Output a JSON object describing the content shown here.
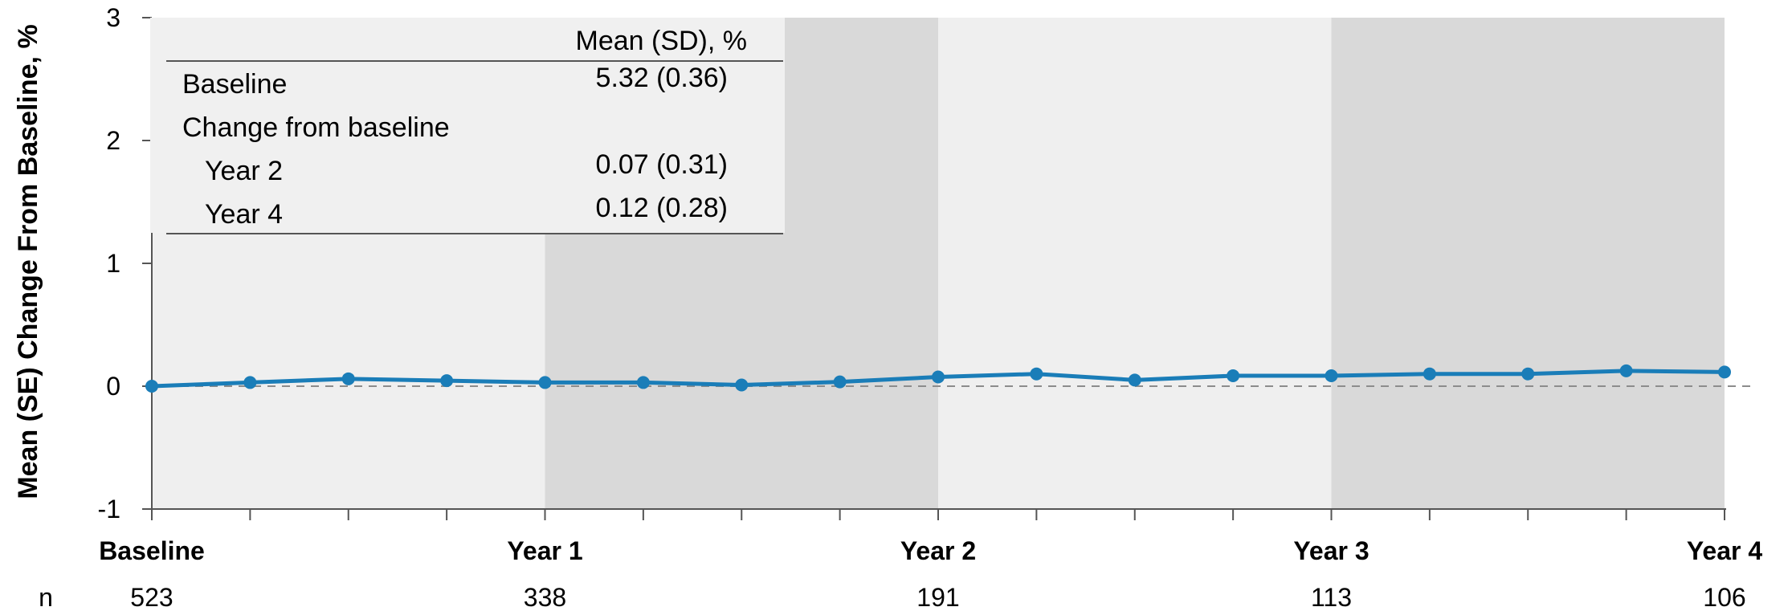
{
  "chart_data": {
    "type": "line",
    "ylabel": "Mean (SE) Change From Baseline, %",
    "ylim": [
      -1,
      3
    ],
    "yticks": [
      "3",
      "2",
      "1",
      "0",
      "-1"
    ],
    "x_major_labels": [
      "Baseline",
      "Year 1",
      "Year 2",
      "Year 3",
      "Year 4"
    ],
    "n_label": "n",
    "n_values": [
      "523",
      "338",
      "191",
      "113",
      "106"
    ],
    "series": [
      {
        "values": [
          0.0,
          0.03,
          0.06,
          0.045,
          0.03,
          0.03,
          0.01,
          0.035,
          0.075,
          0.1,
          0.05,
          0.085,
          0.085,
          0.1,
          0.1,
          0.125,
          0.115
        ]
      }
    ],
    "shaded_bands": [
      "light",
      "dark",
      "light",
      "dark"
    ],
    "reference_line_y": 0,
    "colors": {
      "line": "#1a7db8",
      "band_light": "#efefef",
      "band_dark": "#d9d9d9",
      "reference": "#8c8c8c"
    }
  },
  "inset_table": {
    "header": "Mean (SD), %",
    "rows": [
      {
        "label": "Baseline",
        "value": "5.32 (0.36)"
      },
      {
        "label": "Change from baseline",
        "value": ""
      },
      {
        "label": "Year 2",
        "value": "0.07 (0.31)"
      },
      {
        "label": "Year 4",
        "value": "0.12 (0.28)"
      }
    ]
  }
}
